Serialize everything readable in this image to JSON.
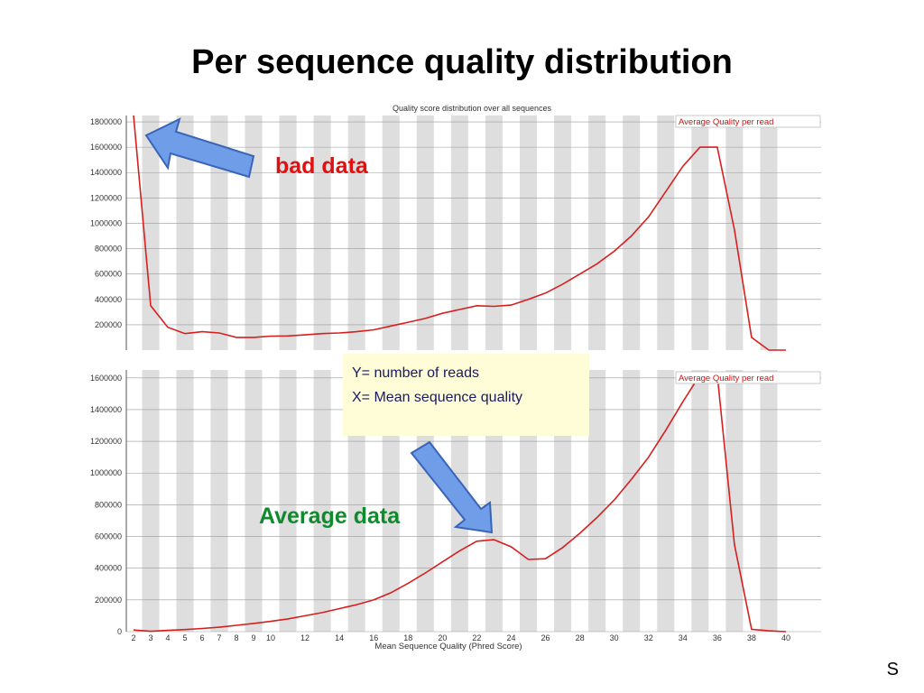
{
  "slide": {
    "title": "Per sequence quality distribution",
    "bad_label": "bad data",
    "average_label": "Average data",
    "info_line1": "Y= number of reads",
    "info_line2": "X= Mean sequence quality",
    "corner_text": "S"
  },
  "colors": {
    "line": "#d71f1f",
    "bad_label": "#e01010",
    "average_label": "#118a2e",
    "arrow_fill": "#6f9de8",
    "arrow_stroke": "#3a64b8",
    "stripe": "#dedede",
    "grid": "#999999",
    "info_bg": "#fffcd8"
  },
  "chart_data": [
    {
      "type": "line",
      "title": "Quality score distribution over all sequences",
      "legend": "Average Quality per read",
      "legend_position": "top-right",
      "grid": true,
      "x_ticks": [],
      "y_ticks": [
        "200000",
        "400000",
        "600000",
        "800000",
        "1000000",
        "1200000",
        "1400000",
        "1600000",
        "1800000"
      ],
      "xlim": [
        2,
        40
      ],
      "ylim": [
        0,
        1850000
      ],
      "x": [
        2,
        3,
        4,
        5,
        6,
        7,
        8,
        9,
        10,
        11,
        12,
        13,
        14,
        15,
        16,
        17,
        18,
        19,
        20,
        21,
        22,
        23,
        24,
        25,
        26,
        27,
        28,
        29,
        30,
        31,
        32,
        33,
        34,
        35,
        36,
        37,
        38,
        39,
        40
      ],
      "values": [
        1900000,
        350000,
        180000,
        130000,
        145000,
        135000,
        100000,
        100000,
        110000,
        112000,
        120000,
        130000,
        135000,
        145000,
        160000,
        190000,
        220000,
        250000,
        290000,
        320000,
        350000,
        345000,
        355000,
        400000,
        450000,
        520000,
        600000,
        680000,
        780000,
        900000,
        1050000,
        1250000,
        1450000,
        1600000,
        1600000,
        950000,
        100000,
        0,
        0
      ]
    },
    {
      "type": "line",
      "title": "",
      "legend": "Average Quality per read",
      "legend_position": "top-right",
      "grid": true,
      "xlabel": "Mean Sequence Quality (Phred Score)",
      "x_ticks": [
        "2",
        "3",
        "4",
        "5",
        "6",
        "7",
        "8",
        "9",
        "10",
        "12",
        "14",
        "16",
        "18",
        "20",
        "22",
        "24",
        "26",
        "28",
        "30",
        "32",
        "34",
        "36",
        "38",
        "40"
      ],
      "y_ticks": [
        "0",
        "200000",
        "400000",
        "600000",
        "800000",
        "1000000",
        "1200000",
        "1400000",
        "1600000"
      ],
      "xlim": [
        2,
        40
      ],
      "ylim": [
        0,
        1650000
      ],
      "x": [
        2,
        3,
        4,
        5,
        6,
        7,
        8,
        9,
        10,
        11,
        12,
        13,
        14,
        15,
        16,
        17,
        18,
        19,
        20,
        21,
        22,
        23,
        24,
        25,
        26,
        27,
        28,
        29,
        30,
        31,
        32,
        33,
        34,
        35,
        36,
        37,
        38,
        39,
        40
      ],
      "values": [
        10000,
        2000,
        8000,
        13000,
        20000,
        28000,
        40000,
        52000,
        65000,
        80000,
        100000,
        120000,
        145000,
        170000,
        200000,
        245000,
        305000,
        370000,
        440000,
        510000,
        570000,
        580000,
        535000,
        455000,
        460000,
        530000,
        620000,
        720000,
        830000,
        960000,
        1100000,
        1270000,
        1450000,
        1620000,
        1620000,
        550000,
        15000,
        5000,
        0
      ]
    }
  ]
}
